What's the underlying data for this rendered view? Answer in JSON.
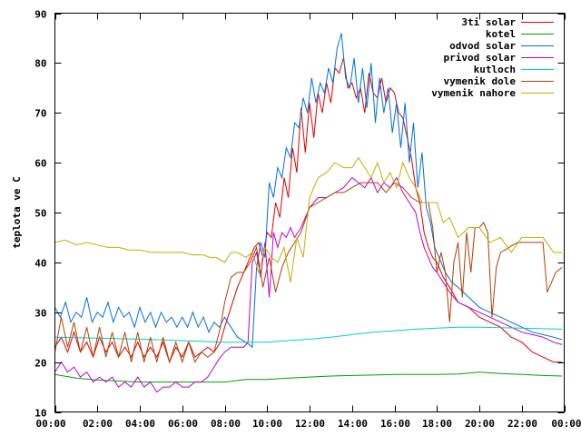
{
  "chart_data": {
    "type": "line",
    "ylabel": "teplota ve C",
    "xlabel": "",
    "xlim": [
      0,
      24
    ],
    "ylim": [
      10,
      90
    ],
    "x_ticks": [
      "00:00",
      "02:00",
      "04:00",
      "06:00",
      "08:00",
      "10:00",
      "12:00",
      "14:00",
      "16:00",
      "18:00",
      "20:00",
      "22:00",
      "00:00"
    ],
    "y_ticks": [
      "10",
      "20",
      "30",
      "40",
      "50",
      "60",
      "70",
      "80",
      "90"
    ],
    "x_tick_values": [
      0,
      2,
      4,
      6,
      8,
      10,
      12,
      14,
      16,
      18,
      20,
      22,
      24
    ],
    "y_tick_values": [
      10,
      20,
      30,
      40,
      50,
      60,
      70,
      80,
      90
    ],
    "legend_position": "top-right",
    "grid": false,
    "series": [
      {
        "name": "3ti solar",
        "color": "#e00000",
        "x": [
          0,
          0.3,
          0.6,
          0.9,
          1.2,
          1.5,
          1.8,
          2.1,
          2.4,
          2.7,
          3.0,
          3.3,
          3.6,
          3.9,
          4.2,
          4.5,
          4.8,
          5.1,
          5.4,
          5.7,
          6.0,
          6.3,
          6.6,
          6.9,
          7.2,
          7.5,
          7.8,
          8.0,
          8.3,
          8.6,
          8.9,
          9.2,
          9.4,
          9.6,
          9.8,
          10.0,
          10.2,
          10.4,
          10.6,
          10.8,
          11.0,
          11.2,
          11.4,
          11.6,
          11.8,
          12.0,
          12.2,
          12.4,
          12.6,
          12.8,
          13.0,
          13.2,
          13.4,
          13.6,
          13.8,
          14.0,
          14.2,
          14.4,
          14.6,
          14.8,
          15.0,
          15.2,
          15.4,
          15.6,
          15.8,
          16.0,
          16.2,
          16.4,
          16.6,
          16.8,
          17.0,
          17.2,
          17.4,
          17.6,
          17.8,
          18.0,
          18.3,
          18.6,
          19.0,
          19.5,
          20.0,
          20.5,
          21.0,
          21.5,
          22.0,
          22.5,
          23.0,
          23.5,
          23.9
        ],
        "y": [
          23,
          25,
          22,
          26,
          22,
          24,
          21,
          25,
          22,
          24,
          21,
          23,
          21,
          24,
          21,
          23,
          21,
          24,
          20,
          23,
          21,
          24,
          21,
          22,
          23,
          22,
          24,
          27,
          31,
          35,
          38,
          41,
          43,
          44,
          41,
          46,
          45,
          52,
          49,
          57,
          53,
          63,
          58,
          71,
          62,
          72,
          65,
          74,
          70,
          76,
          72,
          79,
          78,
          81,
          75,
          76,
          73,
          75,
          70,
          78,
          74,
          73,
          77,
          72,
          75,
          74,
          70,
          69,
          65,
          61,
          55,
          52,
          46,
          43,
          41,
          40,
          37,
          35,
          32,
          31,
          29,
          28,
          27,
          25,
          24,
          22,
          21,
          20,
          20
        ]
      },
      {
        "name": "kotel",
        "color": "#00a000",
        "x": [
          0,
          1,
          2,
          3,
          4,
          5,
          6,
          7,
          8,
          9,
          10,
          11,
          12,
          13,
          14,
          15,
          16,
          17,
          18,
          19,
          20,
          21,
          22,
          23,
          23.9
        ],
        "y": [
          17.5,
          16.8,
          16.4,
          16.2,
          16.0,
          16.0,
          16.0,
          16.0,
          16.0,
          16.5,
          16.5,
          16.8,
          17.0,
          17.2,
          17.3,
          17.4,
          17.5,
          17.5,
          17.5,
          17.6,
          18.0,
          17.7,
          17.5,
          17.3,
          17.2
        ]
      },
      {
        "name": "odvod solar",
        "color": "#0070e0",
        "x": [
          0,
          0.25,
          0.5,
          0.75,
          1.0,
          1.25,
          1.5,
          1.75,
          2.0,
          2.25,
          2.5,
          2.75,
          3.0,
          3.25,
          3.5,
          3.75,
          4.0,
          4.25,
          4.5,
          4.75,
          5.0,
          5.25,
          5.5,
          5.75,
          6.0,
          6.25,
          6.5,
          6.75,
          7.0,
          7.25,
          7.5,
          7.75,
          8.0,
          8.3,
          8.6,
          9.0,
          9.3,
          9.5,
          9.7,
          9.9,
          10.1,
          10.3,
          10.5,
          10.7,
          10.9,
          11.1,
          11.3,
          11.5,
          11.7,
          11.9,
          12.1,
          12.3,
          12.5,
          12.7,
          12.9,
          13.1,
          13.3,
          13.5,
          13.7,
          13.9,
          14.1,
          14.3,
          14.5,
          14.7,
          14.9,
          15.1,
          15.3,
          15.5,
          15.7,
          15.9,
          16.1,
          16.3,
          16.5,
          16.7,
          16.9,
          17.1,
          17.3,
          17.5,
          17.7,
          17.9,
          18.1,
          18.4,
          18.7,
          19.0,
          19.5,
          20.0,
          20.5,
          21.0,
          21.5,
          22.0,
          22.5,
          23.0,
          23.5,
          23.9
        ],
        "y": [
          31,
          29,
          32,
          28,
          30,
          29,
          33,
          28,
          30,
          29,
          32,
          28,
          31,
          29,
          30,
          27,
          31,
          28,
          30,
          27,
          30,
          28,
          29,
          27,
          29,
          27,
          30,
          27,
          29,
          26,
          28,
          27,
          29,
          27,
          25,
          24,
          23,
          39,
          44,
          41,
          56,
          53,
          59,
          57,
          63,
          61,
          68,
          67,
          73,
          70,
          77,
          72,
          76,
          74,
          79,
          76,
          83,
          86,
          77,
          75,
          81,
          72,
          79,
          71,
          80,
          68,
          77,
          70,
          75,
          66,
          72,
          63,
          72,
          60,
          68,
          55,
          62,
          51,
          48,
          43,
          41,
          38,
          36,
          35,
          33,
          31,
          30,
          29,
          28,
          27,
          26,
          25.5,
          25,
          24.5
        ]
      },
      {
        "name": "privod solar",
        "color": "#c000d0",
        "x": [
          0,
          0.3,
          0.6,
          0.9,
          1.2,
          1.5,
          1.8,
          2.1,
          2.4,
          2.7,
          3.0,
          3.3,
          3.6,
          3.9,
          4.2,
          4.5,
          4.8,
          5.1,
          5.4,
          5.7,
          6.0,
          6.3,
          6.6,
          6.9,
          7.2,
          7.5,
          7.8,
          8.0,
          8.3,
          8.6,
          8.9,
          9.1,
          9.3,
          9.5,
          9.7,
          9.9,
          10.1,
          10.3,
          10.5,
          10.7,
          10.9,
          11.1,
          11.3,
          11.6,
          12.0,
          12.4,
          12.8,
          13.2,
          13.6,
          14.0,
          14.3,
          14.6,
          14.9,
          15.2,
          15.5,
          15.8,
          16.1,
          16.4,
          16.7,
          17.0,
          17.2,
          17.4,
          17.6,
          17.8,
          18.0,
          18.3,
          18.6,
          19.0,
          19.5,
          20.0,
          20.5,
          21.0,
          21.5,
          22.0,
          22.5,
          23.0,
          23.5,
          23.9
        ],
        "y": [
          18,
          20,
          18,
          19,
          17,
          18,
          16,
          17,
          16,
          17,
          15,
          16,
          15,
          17,
          15,
          16,
          14,
          15,
          15,
          16,
          15,
          15,
          16,
          16,
          17,
          19,
          21,
          22,
          23,
          23,
          23,
          24,
          40,
          42,
          37,
          44,
          33,
          46,
          43,
          46,
          45,
          47,
          45,
          47,
          51,
          53,
          53,
          54,
          55,
          57,
          56,
          55,
          57,
          54,
          56,
          55,
          57,
          54,
          52,
          50,
          46,
          43,
          41,
          39,
          38,
          36,
          34,
          32,
          31,
          30,
          29,
          28,
          27,
          26,
          25.5,
          25,
          24,
          23.5
        ]
      },
      {
        "name": "kutloch",
        "color": "#00d0d0",
        "x": [
          0,
          2,
          4,
          6,
          8,
          9,
          10,
          11,
          12,
          13,
          14,
          15,
          16,
          17,
          18,
          19,
          20,
          21,
          22,
          23,
          23.9
        ],
        "y": [
          25,
          24.8,
          24.6,
          24.3,
          24,
          24,
          24,
          24.3,
          24.6,
          25,
          25.5,
          26,
          26.3,
          26.6,
          26.8,
          27,
          27,
          26.9,
          26.8,
          26.7,
          26.6
        ]
      },
      {
        "name": "vymenik dole",
        "color": "#b04000",
        "x": [
          0,
          0.3,
          0.6,
          0.9,
          1.2,
          1.5,
          1.8,
          2.1,
          2.4,
          2.7,
          3.0,
          3.3,
          3.6,
          3.9,
          4.2,
          4.5,
          4.8,
          5.1,
          5.4,
          5.7,
          6.0,
          6.3,
          6.6,
          6.9,
          7.2,
          7.5,
          7.8,
          8.0,
          8.3,
          8.6,
          8.9,
          9.2,
          9.5,
          9.8,
          10.1,
          10.4,
          10.7,
          11.0,
          11.3,
          11.6,
          12.0,
          12.4,
          12.8,
          13.2,
          13.6,
          14.0,
          14.4,
          14.8,
          15.2,
          15.6,
          16.0,
          16.4,
          16.8,
          17.2,
          17.6,
          17.8,
          18.0,
          18.2,
          18.4,
          18.6,
          18.8,
          19.0,
          19.2,
          19.4,
          19.6,
          19.8,
          20.0,
          20.2,
          20.4,
          20.6,
          20.8,
          21.0,
          21.4,
          21.8,
          22.2,
          22.6,
          23.0,
          23.2,
          23.4,
          23.6,
          23.9
        ],
        "y": [
          22,
          29,
          23,
          28,
          22,
          27,
          21,
          27,
          21,
          26,
          21,
          26,
          20,
          26,
          20,
          25,
          20,
          25,
          20,
          24,
          20,
          24,
          20,
          22,
          21,
          22,
          27,
          32,
          37,
          38,
          38,
          40,
          43,
          35,
          41,
          34,
          39,
          42,
          44,
          46,
          51,
          52,
          53,
          54,
          54,
          55,
          56,
          56,
          56,
          54,
          56,
          55,
          53,
          52,
          52,
          47,
          38,
          42,
          38,
          28,
          40,
          44,
          33,
          46,
          38,
          47,
          47,
          48,
          46,
          29,
          39,
          42,
          43,
          44,
          44,
          44,
          44,
          34,
          36,
          38,
          39
        ]
      },
      {
        "name": "vymenik nahore",
        "color": "#c0b000",
        "x": [
          0,
          0.5,
          1.0,
          1.5,
          2.0,
          2.5,
          3.0,
          3.5,
          4.0,
          4.5,
          5.0,
          5.5,
          6.0,
          6.5,
          7.0,
          7.3,
          7.6,
          8.0,
          8.3,
          8.6,
          9.0,
          9.3,
          9.6,
          9.9,
          10.2,
          10.5,
          10.8,
          11.1,
          11.4,
          11.7,
          12.0,
          12.4,
          12.8,
          13.2,
          13.6,
          14.0,
          14.3,
          14.6,
          14.9,
          15.2,
          15.5,
          15.8,
          16.1,
          16.4,
          16.7,
          17.0,
          17.3,
          17.6,
          18.0,
          18.3,
          18.6,
          19.0,
          19.5,
          20.0,
          20.5,
          21.0,
          21.5,
          22.0,
          22.5,
          23.0,
          23.5,
          23.9
        ],
        "y": [
          44,
          44.5,
          43.5,
          44,
          43.5,
          43,
          43,
          42.5,
          42.5,
          42,
          42,
          42,
          42,
          41.5,
          41.5,
          41,
          41,
          40,
          42,
          42,
          41,
          42,
          38,
          43,
          41,
          40,
          43,
          36,
          45,
          41,
          53,
          57,
          58,
          60,
          59,
          59,
          61,
          59,
          57,
          60,
          56,
          58,
          55,
          60,
          57,
          55,
          52,
          52,
          52,
          48,
          49,
          45,
          47,
          47,
          44,
          45,
          42,
          45,
          45,
          45,
          42,
          42
        ]
      }
    ]
  }
}
